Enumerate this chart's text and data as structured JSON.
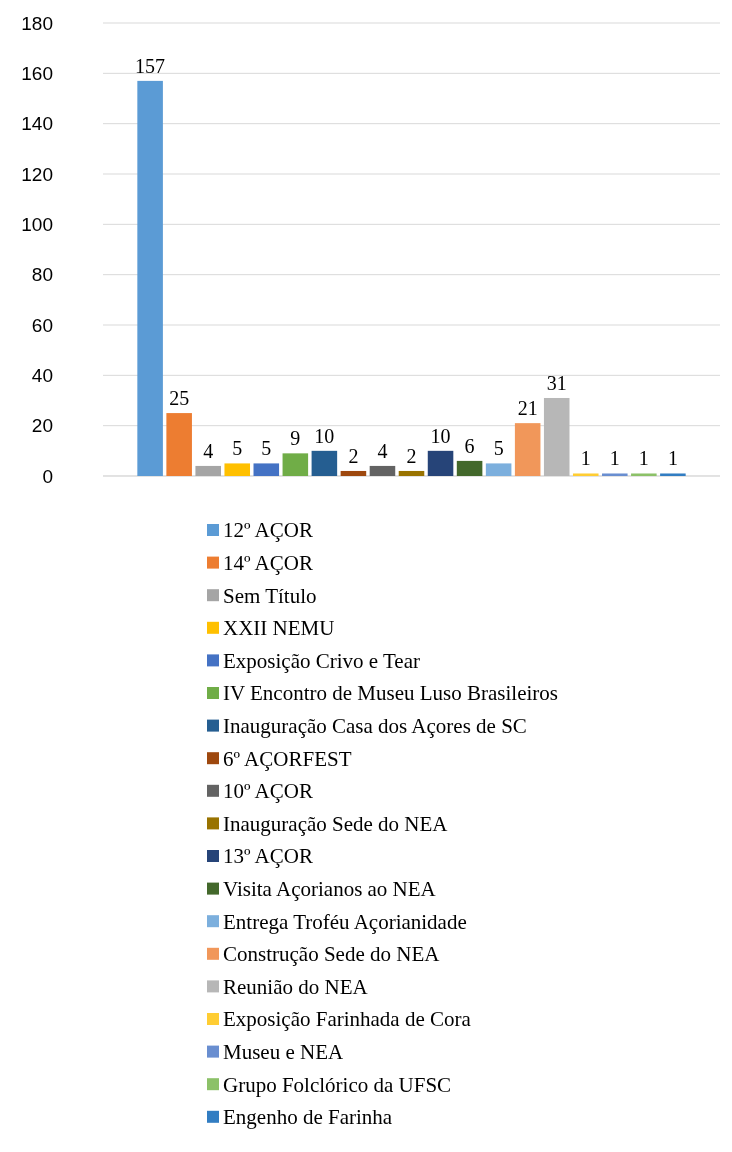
{
  "chart_data": {
    "type": "bar",
    "categories": [
      null
    ],
    "ylim": [
      0,
      180
    ],
    "yticks": [
      0,
      20,
      40,
      60,
      80,
      100,
      120,
      140,
      160,
      180
    ],
    "grid": "y",
    "data_labels": true,
    "legend": "bottom",
    "series": [
      {
        "name": "12º AÇOR",
        "color": "#5b9bd5",
        "values": [
          157
        ]
      },
      {
        "name": "14º AÇOR",
        "color": "#ed7d31",
        "values": [
          25
        ]
      },
      {
        "name": "Sem Título",
        "color": "#a5a5a5",
        "values": [
          4
        ]
      },
      {
        "name": "XXII NEMU",
        "color": "#ffc000",
        "values": [
          5
        ]
      },
      {
        "name": "Exposição Crivo e Tear",
        "color": "#4472c4",
        "values": [
          5
        ]
      },
      {
        "name": "IV Encontro de Museu Luso Brasileiros",
        "color": "#70ad47",
        "values": [
          9
        ]
      },
      {
        "name": "Inauguração Casa dos Açores de SC",
        "color": "#255e91",
        "values": [
          10
        ]
      },
      {
        "name": "6º AÇORFEST",
        "color": "#9e480e",
        "values": [
          2
        ]
      },
      {
        "name": "10º AÇOR",
        "color": "#636363",
        "values": [
          4
        ]
      },
      {
        "name": "Inauguração Sede do NEA",
        "color": "#997300",
        "values": [
          2
        ]
      },
      {
        "name": "13º AÇOR",
        "color": "#264478",
        "values": [
          10
        ]
      },
      {
        "name": "Visita Açorianos ao NEA",
        "color": "#43682b",
        "values": [
          6
        ]
      },
      {
        "name": "Entrega Troféu Açorianidade",
        "color": "#7cafdd",
        "values": [
          5
        ]
      },
      {
        "name": "Construção Sede do NEA",
        "color": "#f1975a",
        "values": [
          21
        ]
      },
      {
        "name": "Reunião do NEA",
        "color": "#b7b7b7",
        "values": [
          31
        ]
      },
      {
        "name": "Exposição Farinhada de Cora",
        "color": "#ffcd33",
        "values": [
          1
        ]
      },
      {
        "name": "Museu e NEA",
        "color": "#698ed0",
        "values": [
          1
        ]
      },
      {
        "name": "Grupo Folclórico da UFSC",
        "color": "#8cc168",
        "values": [
          1
        ]
      },
      {
        "name": "Engenho de Farinha",
        "color": "#327dc2",
        "values": [
          1
        ]
      }
    ]
  }
}
